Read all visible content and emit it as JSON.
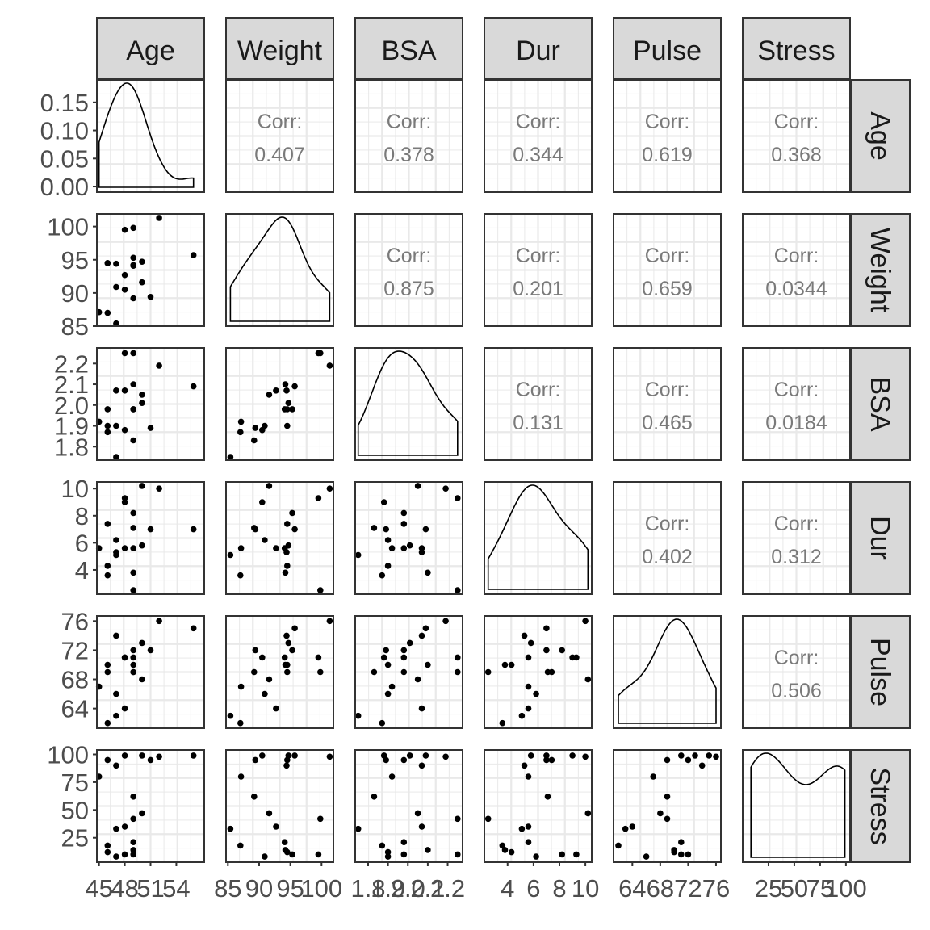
{
  "chart_data": {
    "type": "scatter",
    "subtype": "pairs-matrix",
    "variables": [
      "Age",
      "Weight",
      "BSA",
      "Dur",
      "Pulse",
      "Stress"
    ],
    "corr_label": "Corr:",
    "correlations": [
      [
        "",
        "0.407",
        "0.378",
        "0.344",
        "0.619",
        "0.368"
      ],
      [
        "",
        "",
        "0.875",
        "0.201",
        "0.659",
        "0.0344"
      ],
      [
        "",
        "",
        "",
        "0.131",
        "0.465",
        "0.0184"
      ],
      [
        "",
        "",
        "",
        "",
        "0.402",
        "0.312"
      ],
      [
        "",
        "",
        "",
        "",
        "",
        "0.506"
      ],
      [
        "",
        "",
        "",
        "",
        "",
        ""
      ]
    ],
    "x_ranges": {
      "Age": [
        44.75,
        57.25
      ],
      "Weight": [
        84.7,
        101.9
      ],
      "BSA": [
        1.735,
        2.275
      ],
      "Dur": [
        2.21,
        10.49
      ],
      "Pulse": [
        61.3,
        76.7
      ],
      "Stress": [
        0,
        104
      ]
    },
    "y_ranges": {
      "Age": [
        -0.01,
        0.19
      ],
      "Weight": [
        85.0,
        101.9
      ],
      "BSA": [
        1.735,
        2.275
      ],
      "Dur": [
        2.21,
        10.49
      ],
      "Pulse": [
        61.3,
        76.7
      ],
      "Stress": [
        3,
        104
      ]
    },
    "x_tick_labels": {
      "Age": [
        "45",
        "48",
        "51",
        "54"
      ],
      "Weight": [
        "85",
        "90",
        "95",
        "100"
      ],
      "BSA": [
        "1.8",
        "1.9",
        "2.0",
        "2.1",
        "2.2"
      ],
      "Dur": [
        "4",
        "6",
        "8",
        "10"
      ],
      "Pulse": [
        "64",
        "68",
        "72",
        "76"
      ],
      "Stress": [
        "25",
        "50",
        "75",
        "100"
      ]
    },
    "y_tick_labels": {
      "Age": [
        "0.00",
        "0.05",
        "0.10",
        "0.15"
      ],
      "Weight": [
        "85",
        "90",
        "95",
        "100"
      ],
      "BSA": [
        "1.8",
        "1.9",
        "2.0",
        "2.1",
        "2.2"
      ],
      "Dur": [
        "4",
        "6",
        "8",
        "10"
      ],
      "Pulse": [
        "64",
        "68",
        "72",
        "76"
      ],
      "Stress": [
        "25",
        "50",
        "75",
        "100"
      ]
    },
    "observations": {
      "Age": [
        47,
        49,
        49,
        50,
        51,
        48,
        49,
        47,
        49,
        48,
        47,
        49,
        50,
        45,
        52,
        46,
        46,
        46,
        48,
        56
      ],
      "Weight": [
        85.4,
        94.2,
        95.3,
        94.7,
        89.4,
        99.5,
        99.8,
        90.9,
        89.2,
        92.7,
        94.4,
        94.1,
        91.6,
        87.1,
        101.3,
        94.5,
        87.0,
        94.5,
        90.5,
        95.7
      ],
      "BSA": [
        1.75,
        2.1,
        1.98,
        2.01,
        1.89,
        2.25,
        2.25,
        1.9,
        1.83,
        2.07,
        2.07,
        1.98,
        2.05,
        1.92,
        2.19,
        1.98,
        1.87,
        1.9,
        1.88,
        2.09
      ],
      "Dur": [
        5.1,
        3.8,
        8.2,
        5.8,
        7.0,
        9.3,
        2.5,
        6.2,
        7.1,
        5.6,
        5.3,
        5.6,
        10.2,
        5.6,
        10.0,
        7.4,
        3.6,
        4.3,
        9.0,
        7.0
      ],
      "Pulse": [
        63,
        70,
        72,
        73,
        72,
        71,
        69,
        66,
        69,
        64,
        74,
        71,
        68,
        67,
        76,
        69,
        62,
        70,
        71,
        75
      ],
      "Stress": [
        33,
        14,
        10,
        99,
        95,
        10,
        42,
        8,
        62,
        35,
        90,
        21,
        47,
        80,
        98,
        95,
        18,
        12,
        99,
        99
      ]
    },
    "density_style": "line",
    "grid": true,
    "facet_strips": "top-and-right"
  }
}
